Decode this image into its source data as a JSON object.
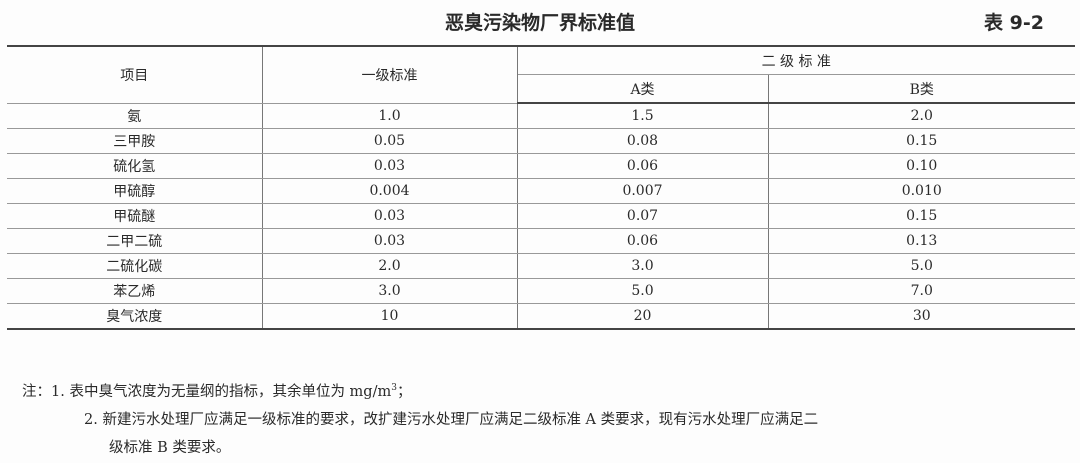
{
  "title": "恶臭污染物厂界标准值",
  "table_number": "表 9-2",
  "table": {
    "headers": {
      "item": "项目",
      "grade1": "一级标准",
      "grade2": "二 级 标 准",
      "grade2_a": "A类",
      "grade2_b": "B类"
    },
    "rows": [
      [
        "氨",
        "1.0",
        "1.5",
        "2.0"
      ],
      [
        "三甲胺",
        "0.05",
        "0.08",
        "0.15"
      ],
      [
        "硫化氢",
        "0.03",
        "0.06",
        "0.10"
      ],
      [
        "甲硫醇",
        "0.004",
        "0.007",
        "0.010"
      ],
      [
        "甲硫醚",
        "0.03",
        "0.07",
        "0.15"
      ],
      [
        "二甲二硫",
        "0.03",
        "0.06",
        "0.13"
      ],
      [
        "二硫化碳",
        "2.0",
        "3.0",
        "5.0"
      ],
      [
        "苯乙烯",
        "3.0",
        "5.0",
        "7.0"
      ],
      [
        "臭气浓度",
        "10",
        "20",
        "30"
      ]
    ]
  },
  "notes": {
    "note1_prefix": "注：1. 表中臭气浓度为无量纲的指标，其余单位为 mg/m",
    "note1_sup": "3",
    "note1_suffix": "；",
    "note2_line1": "2. 新建污水处理厂应满足一级标准的要求，改扩建污水处理厂应满足二级标准 A 类要求，现有污水处理厂应满足二",
    "note2_line2": "级标准 B 类要求。"
  }
}
